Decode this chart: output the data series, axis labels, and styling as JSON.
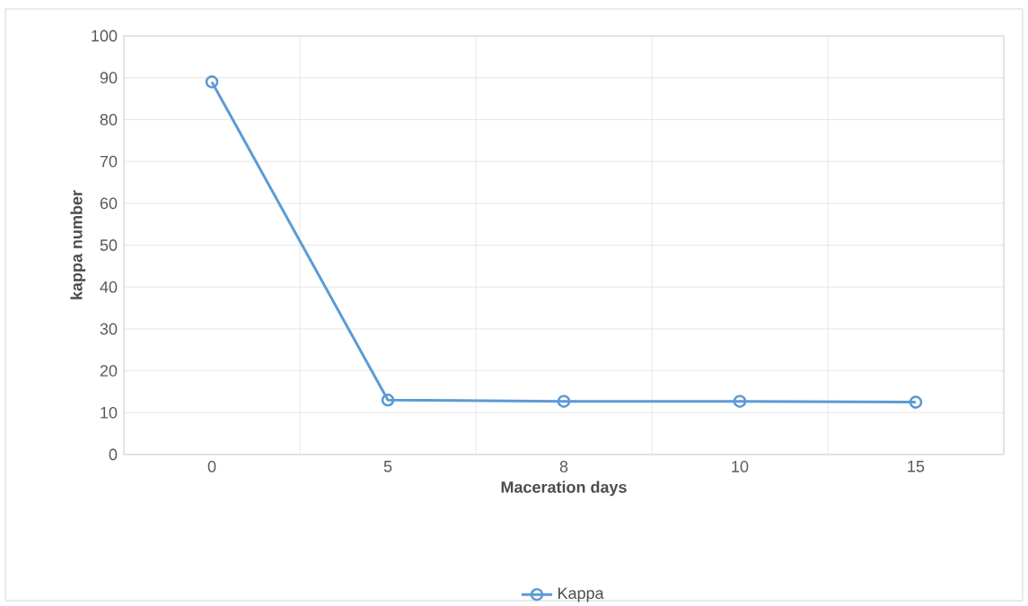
{
  "chart_data": {
    "type": "line",
    "xlabel": "Maceration days",
    "ylabel": "kappa number",
    "categories": [
      "0",
      "5",
      "8",
      "10",
      "15"
    ],
    "series": [
      {
        "name": "Kappa",
        "color": "#5b9bd5",
        "values": [
          89,
          13,
          12.7,
          12.7,
          12.5
        ]
      }
    ],
    "ylim": [
      0,
      100
    ],
    "yticks": [
      0,
      10,
      20,
      30,
      40,
      50,
      60,
      70,
      80,
      90,
      100
    ],
    "grid": true,
    "legend": "bottom",
    "marker": "circle",
    "line_style": "solid"
  }
}
